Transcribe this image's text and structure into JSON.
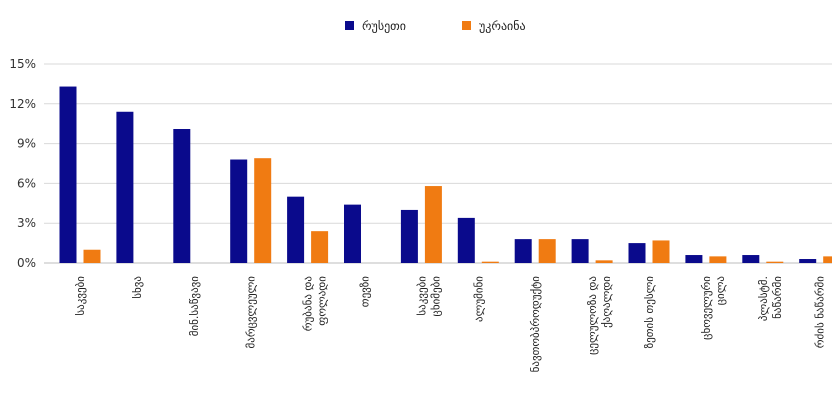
{
  "chart_data": {
    "type": "bar",
    "categories": [
      "საკვები",
      "სხვა",
      "მინ.საწვავი",
      "მარცვლეული",
      "რუბანა და ფოლადი",
      "თევზი",
      "საკვები ცხიმები",
      "ალუმინი",
      "ნავთობპროდუქტი",
      "ცელულოზა და ქაღალდი",
      "ზეთის თესლი",
      "ცხოველური ცილა",
      "პლასტმ. ნაწარმი",
      "რძის ნაწარმი"
    ],
    "series": [
      {
        "name": "რუსეთი",
        "color": "#0a0a8c",
        "values": [
          13.3,
          11.4,
          10.1,
          7.8,
          5.0,
          4.4,
          4.0,
          3.4,
          1.8,
          1.8,
          1.5,
          0.6,
          0.6,
          0.3
        ]
      },
      {
        "name": "უკრაინა",
        "color": "#f07b12",
        "values": [
          1.0,
          0.0,
          0.0,
          7.9,
          2.4,
          0.0,
          5.8,
          0.1,
          1.8,
          0.2,
          1.7,
          0.5,
          0.1,
          0.5
        ]
      }
    ],
    "y_ticks": [
      "0%",
      "3%",
      "6%",
      "9%",
      "12%",
      "15%"
    ],
    "ylim": [
      0,
      15
    ],
    "grid": true,
    "legend_position": "top-center"
  }
}
